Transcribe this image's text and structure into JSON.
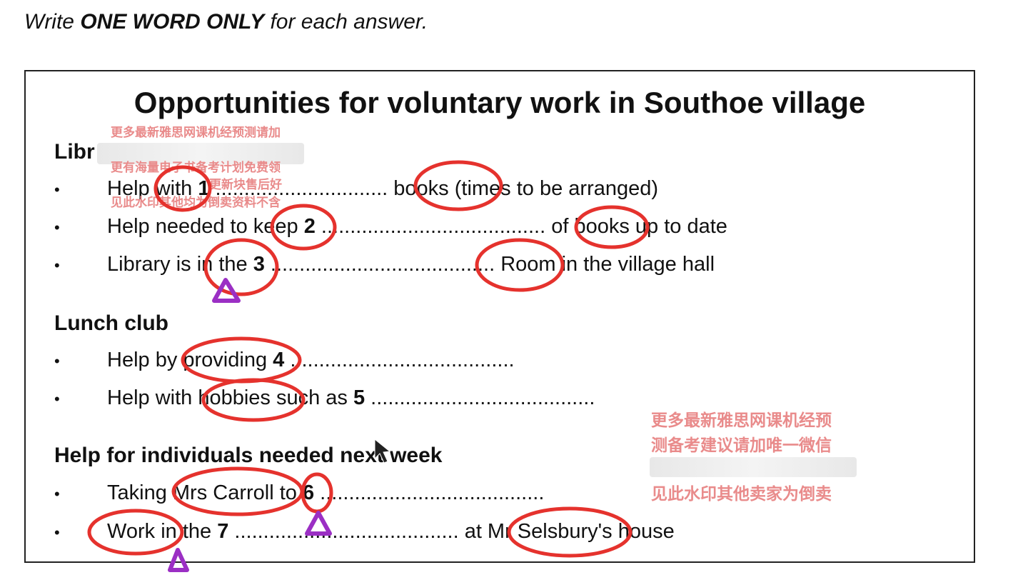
{
  "instruction": {
    "prefix": "Write ",
    "bold": "ONE WORD ONLY",
    "suffix": " for each answer."
  },
  "form": {
    "title": "Opportunities for voluntary work in Southoe village",
    "sections": {
      "library": {
        "heading": "Libr",
        "items": [
          {
            "before": "Help with ",
            "num": "1",
            "dots": " .............................. ",
            "after": "books (times to be arranged)"
          },
          {
            "before": "Help needed to keep ",
            "num": "2",
            "dots": " ....................................... ",
            "after": "of books up to date"
          },
          {
            "before": "Library is in the ",
            "num": "3",
            "dots": " ....................................... ",
            "after": "Room in the village hall"
          }
        ]
      },
      "lunch": {
        "heading": "Lunch club",
        "items": [
          {
            "before": "Help by providing ",
            "num": "4",
            "dots": " ....................................... ",
            "after": ""
          },
          {
            "before": "Help with hobbies such as ",
            "num": "5",
            "dots": " ....................................... ",
            "after": ""
          }
        ]
      },
      "individuals": {
        "heading": "Help for individuals needed next week",
        "items": [
          {
            "before": "Taking Mrs Carroll to ",
            "num": "6",
            "dots": " ....................................... ",
            "after": ""
          },
          {
            "before": "Work in the ",
            "num": "7",
            "dots": " ....................................... ",
            "after": "at Mr Selsbury's house"
          }
        ]
      }
    }
  },
  "watermark_small": {
    "line1": "更多最新雅思网课机经预测请加",
    "line2": "更有海量电子书备考计划免费领",
    "line3": "更新块售后好",
    "line4": "见此水印其他均为倒卖资料不含"
  },
  "watermark_big": {
    "line1": "更多最新雅思网课机经预",
    "line2": "测备考建议请加唯一微信",
    "line4": "见此水印其他卖家为倒卖"
  },
  "bullet": "•",
  "colors": {
    "circle": "#e5322d",
    "triangle": "#9b2fc4",
    "watermark": "#e98b8b"
  }
}
